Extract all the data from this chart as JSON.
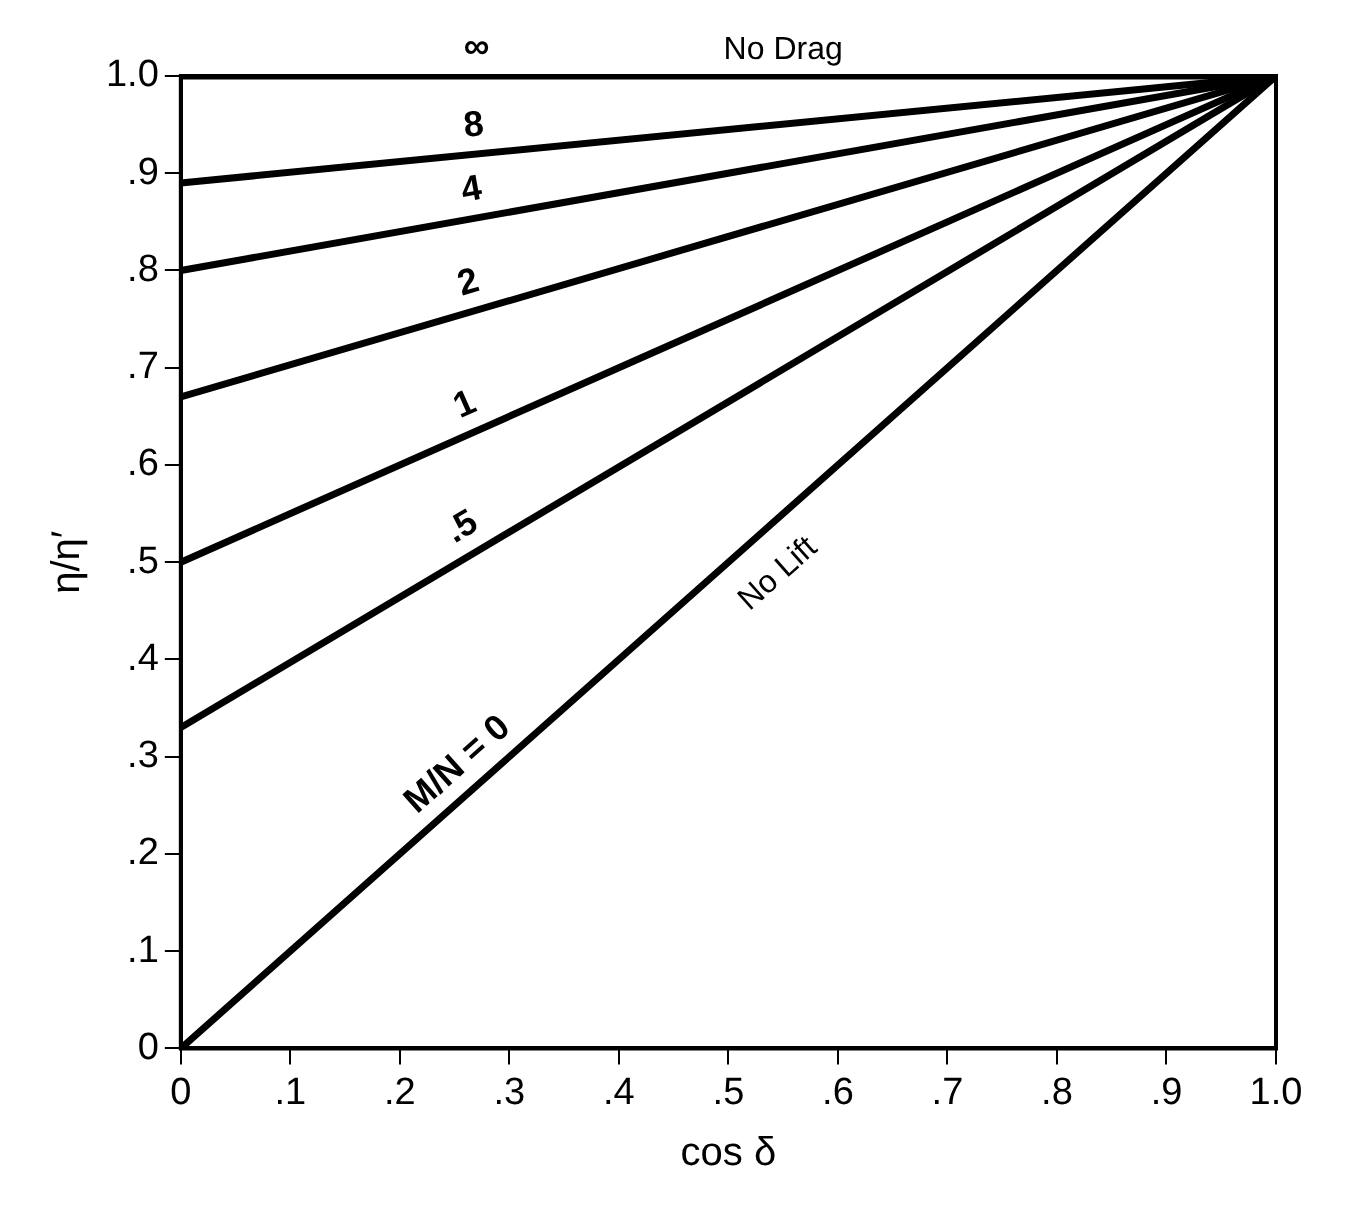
{
  "chart_data": {
    "type": "line",
    "xlabel": "cos δ",
    "ylabel": "η/η′",
    "x": [
      0,
      1
    ],
    "series": [
      {
        "name": "∞",
        "color": "#000000",
        "values": [
          1.0,
          1.0
        ]
      },
      {
        "name": "8",
        "color": "#000000",
        "values": [
          0.89,
          1.0
        ]
      },
      {
        "name": "4",
        "color": "#000000",
        "values": [
          0.8,
          1.0
        ]
      },
      {
        "name": "2",
        "color": "#000000",
        "values": [
          0.67,
          1.0
        ]
      },
      {
        "name": "1",
        "color": "#000000",
        "values": [
          0.5,
          1.0
        ]
      },
      {
        "name": ".5",
        "color": "#000000",
        "values": [
          0.33,
          1.0
        ]
      },
      {
        "name": "M/N = 0",
        "color": "#000000",
        "values": [
          0,
          1.0
        ]
      }
    ],
    "annotations": [
      {
        "text": "No Drag",
        "x": 0.55,
        "y": 1.0
      },
      {
        "text": "No Lift",
        "x": 0.52,
        "y": 0.52
      }
    ],
    "xlim": [
      0,
      1
    ],
    "ylim": [
      0,
      1
    ],
    "xticks": [
      0,
      {
        "value": 0.1,
        "label": ".1"
      },
      {
        "value": 0.2,
        "label": ".2"
      },
      {
        "value": 0.3,
        "label": ".3"
      },
      {
        "value": 0.4,
        "label": ".4"
      },
      {
        "value": 0.5,
        "label": ".5"
      },
      {
        "value": 0.6,
        "label": ".6"
      },
      {
        "value": 0.7,
        "label": ".7"
      },
      {
        "value": 0.8,
        "label": ".8"
      },
      {
        "value": 0.9,
        "label": ".9"
      },
      {
        "value": 1,
        "label": "1.0"
      }
    ],
    "yticks": [
      0,
      {
        "value": 0.1,
        "label": ".1"
      },
      {
        "value": 0.2,
        "label": ".2"
      },
      {
        "value": 0.3,
        "label": ".3"
      },
      {
        "value": 0.4,
        "label": ".4"
      },
      {
        "value": 0.5,
        "label": ".5"
      },
      {
        "value": 0.6,
        "label": ".6"
      },
      {
        "value": 0.7,
        "label": ".7"
      },
      {
        "value": 0.8,
        "label": ".8"
      },
      {
        "value": 0.9,
        "label": ".9"
      },
      {
        "value": 1,
        "label": "1.0"
      }
    ],
    "grid": false,
    "legend": false,
    "marker": "none",
    "line_style": "solid"
  }
}
